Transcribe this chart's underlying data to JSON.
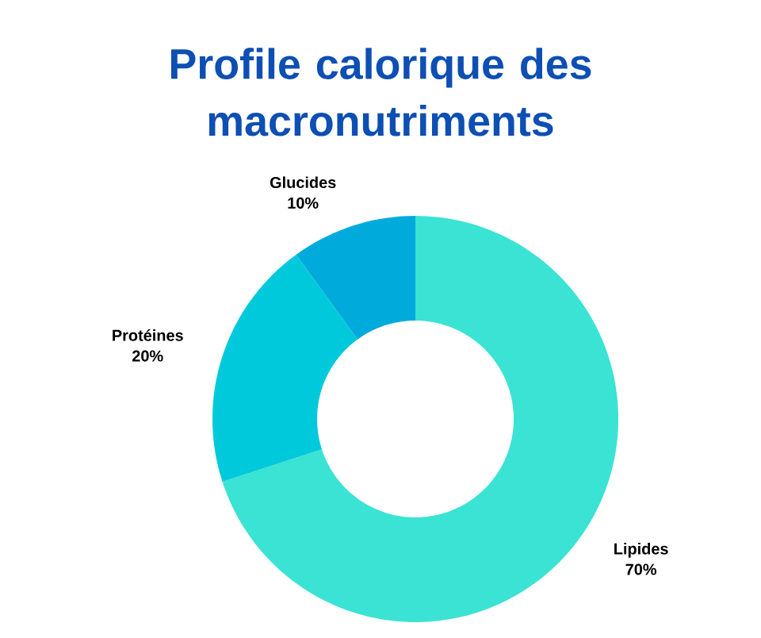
{
  "chart_data": {
    "type": "donut",
    "title": "Profile calorique des macronutriments",
    "categories": [
      "Lipides",
      "Protéines",
      "Glucides"
    ],
    "values": [
      70,
      20,
      10
    ],
    "value_labels": [
      "70%",
      "20%",
      "10%"
    ],
    "colors": [
      "#3ae3d4",
      "#00c9dc",
      "#00abdc"
    ]
  }
}
